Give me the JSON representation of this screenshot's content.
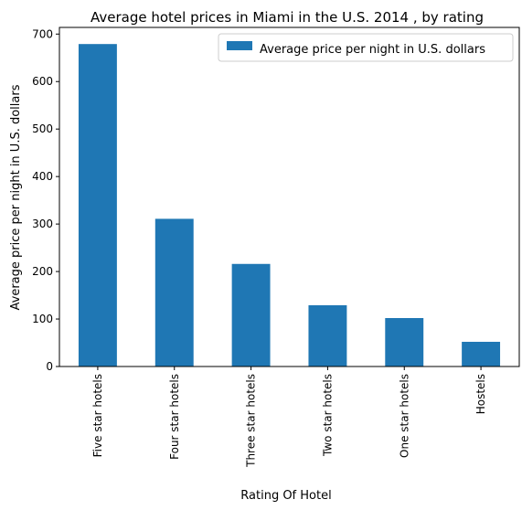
{
  "chart_data": {
    "type": "bar",
    "title": "Average hotel prices in Miami in the U.S. 2014 , by rating",
    "xlabel": "Rating Of Hotel",
    "ylabel": "Average price per night in U.S. dollars",
    "categories": [
      "Five star hotels",
      "Four star hotels",
      "Three star hotels",
      "Two star hotels",
      "One star hotels",
      "Hostels"
    ],
    "series": [
      {
        "name": "Average price per night in U.S. dollars",
        "values": [
          679,
          311,
          216,
          129,
          102,
          52
        ],
        "color": "#1f77b4"
      }
    ],
    "ylim": [
      0,
      714
    ],
    "yticks": [
      0,
      100,
      200,
      300,
      400,
      500,
      600,
      700
    ],
    "grid": false,
    "legend_position": "top-right"
  }
}
